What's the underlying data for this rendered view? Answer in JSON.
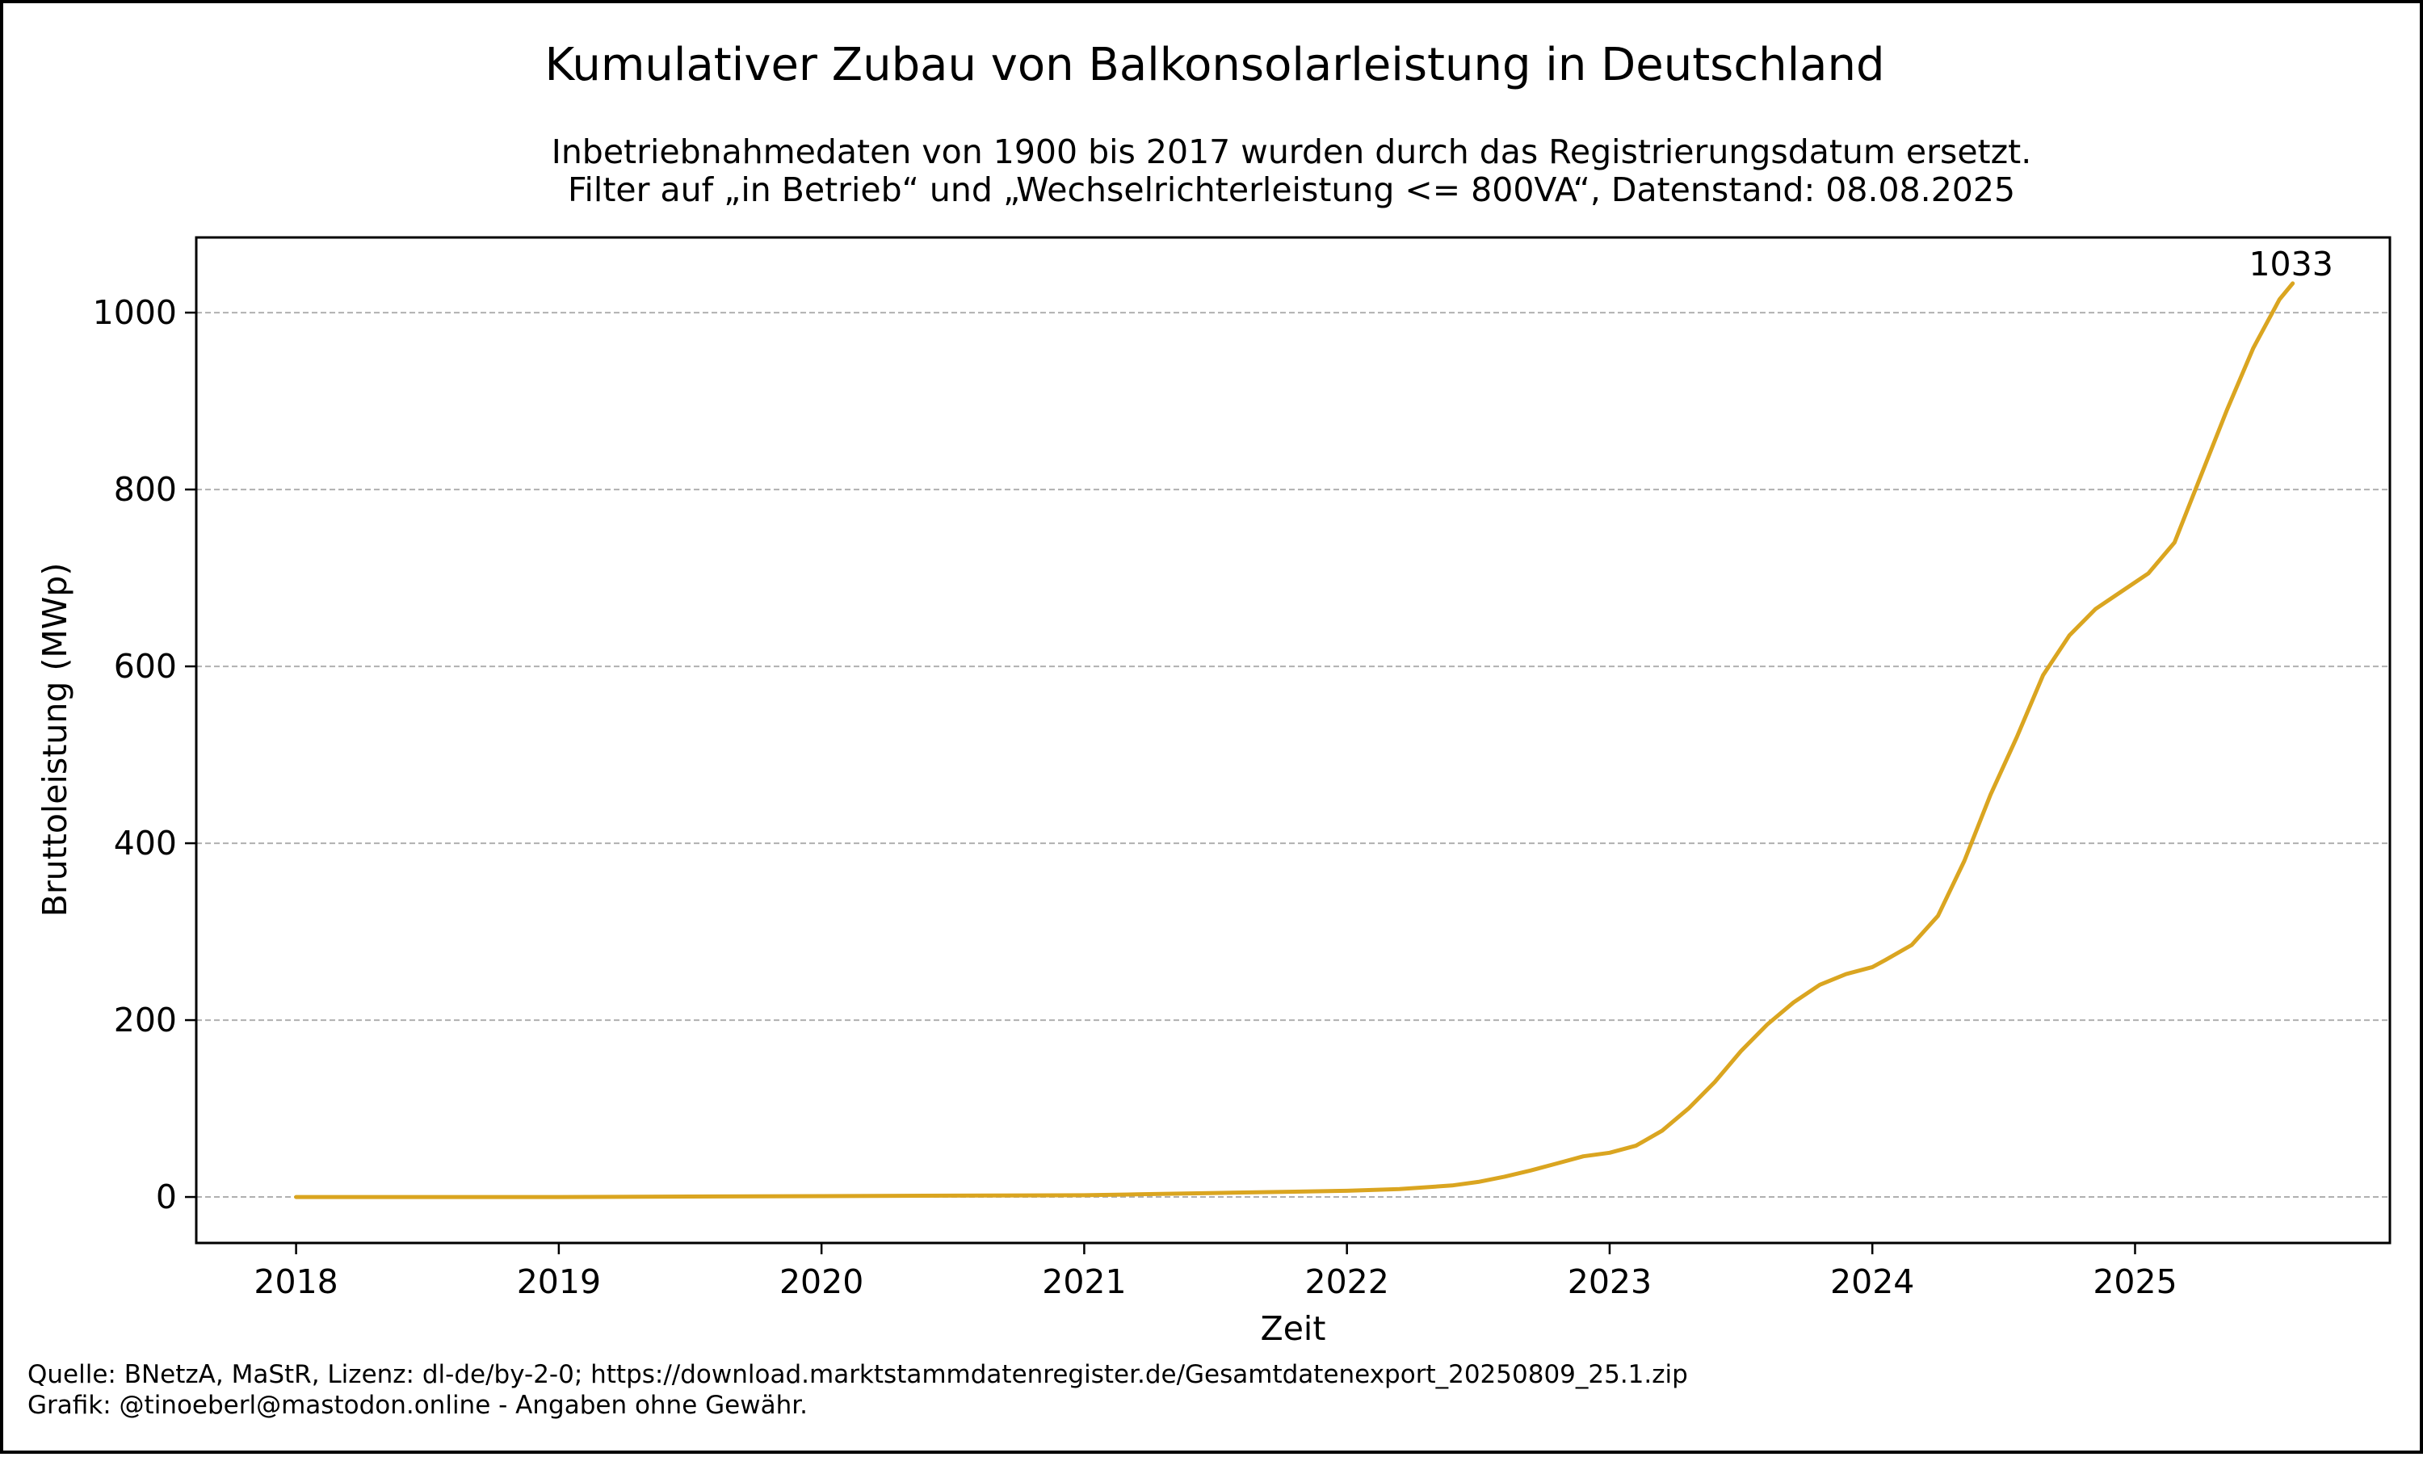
{
  "chart_data": {
    "type": "line",
    "title": "Kumulativer Zubau von Balkonsolarleistung in Deutschland",
    "subtitle_lines": [
      "Inbetriebnahmedaten von 1900 bis 2017 wurden durch das Registrierungsdatum ersetzt.",
      "Filter auf „in Betrieb“ und „Wechselrichterleistung <= 800VA“, Datenstand: 08.08.2025"
    ],
    "xlabel": "Zeit",
    "ylabel": "Bruttoleistung (MWp)",
    "xlim": [
      2017.62,
      2025.97
    ],
    "ylim": [
      -52,
      1085
    ],
    "x_ticks": [
      2018,
      2019,
      2020,
      2021,
      2022,
      2023,
      2024,
      2025
    ],
    "x_tick_labels": [
      "2018",
      "2019",
      "2020",
      "2021",
      "2022",
      "2023",
      "2024",
      "2025"
    ],
    "y_ticks": [
      0,
      200,
      400,
      600,
      800,
      1000
    ],
    "y_tick_labels": [
      "0",
      "200",
      "400",
      "600",
      "800",
      "1000"
    ],
    "grid": "y",
    "line_color": "#DAA520",
    "end_label": "1033",
    "series": [
      {
        "x": [
          2018.0,
          2018.5,
          2019.0,
          2019.5,
          2020.0,
          2020.5,
          2021.0,
          2021.2,
          2021.5,
          2021.8,
          2022.0,
          2022.2,
          2022.4,
          2022.5,
          2022.6,
          2022.7,
          2022.8,
          2022.9,
          2023.0,
          2023.1,
          2023.2,
          2023.3,
          2023.4,
          2023.5,
          2023.6,
          2023.7,
          2023.8,
          2023.9,
          2024.0,
          2024.05,
          2024.15,
          2024.25,
          2024.35,
          2024.45,
          2024.55,
          2024.65,
          2024.75,
          2024.85,
          2024.95,
          2025.05,
          2025.15,
          2025.25,
          2025.35,
          2025.45,
          2025.55,
          2025.6
        ],
        "y": [
          0,
          0,
          0,
          0.5,
          1,
          1.5,
          2,
          3,
          4.5,
          6,
          7,
          9,
          13,
          17,
          23,
          30,
          38,
          46,
          50,
          58,
          75,
          100,
          130,
          165,
          195,
          220,
          240,
          252,
          260,
          268,
          285,
          318,
          380,
          455,
          520,
          590,
          635,
          665,
          685,
          705,
          740,
          815,
          890,
          960,
          1015,
          1033
        ]
      }
    ],
    "footer_lines": [
      "Quelle: BNetzA, MaStR, Lizenz: dl-de/by-2-0; https://download.marktstammdatenregister.de/Gesamtdatenexport_20250809_25.1.zip",
      "Grafik: @tinoeberl@mastodon.online - Angaben ohne Gewähr."
    ]
  }
}
